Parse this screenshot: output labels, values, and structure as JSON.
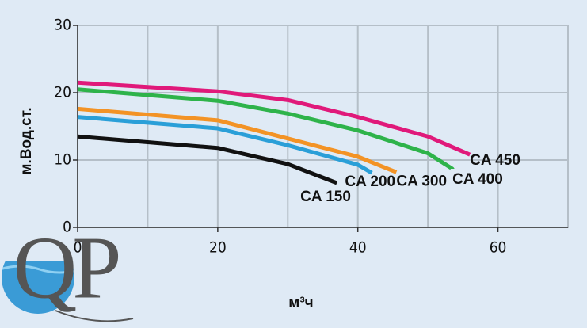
{
  "logo": "QP",
  "chart_data": {
    "type": "line",
    "xlabel": "м³ч",
    "ylabel": "м.Вод.ст.",
    "xlim": [
      0,
      70
    ],
    "ylim": [
      0,
      30
    ],
    "xticks": [
      0,
      20,
      40,
      60
    ],
    "yticks": [
      0,
      10,
      20,
      30
    ],
    "xgrid": [
      0,
      10,
      20,
      30,
      40,
      50,
      60,
      70
    ],
    "grid": true,
    "series": [
      {
        "name": "CA 450",
        "color": "#e0197a",
        "x": [
          0,
          20,
          30,
          40,
          50,
          56
        ],
        "values": [
          21.5,
          20.2,
          18.9,
          16.4,
          13.5,
          10.8
        ]
      },
      {
        "name": "CA 400",
        "color": "#2eb34a",
        "x": [
          0,
          20,
          30,
          40,
          50,
          53.5
        ],
        "values": [
          20.5,
          18.8,
          16.9,
          14.4,
          11,
          8.7
        ]
      },
      {
        "name": "CA 300",
        "color": "#f39325",
        "x": [
          0,
          20,
          30,
          40,
          45.5
        ],
        "values": [
          17.6,
          15.9,
          13.2,
          10.5,
          8.2
        ]
      },
      {
        "name": "CA 200",
        "color": "#2a9fd8",
        "x": [
          0,
          20,
          30,
          40,
          42
        ],
        "values": [
          16.4,
          14.7,
          12.2,
          9.3,
          8.1
        ]
      },
      {
        "name": "CA 150",
        "color": "#111111",
        "x": [
          0,
          20,
          30,
          37
        ],
        "values": [
          13.5,
          11.8,
          9.4,
          6.6
        ]
      }
    ]
  }
}
